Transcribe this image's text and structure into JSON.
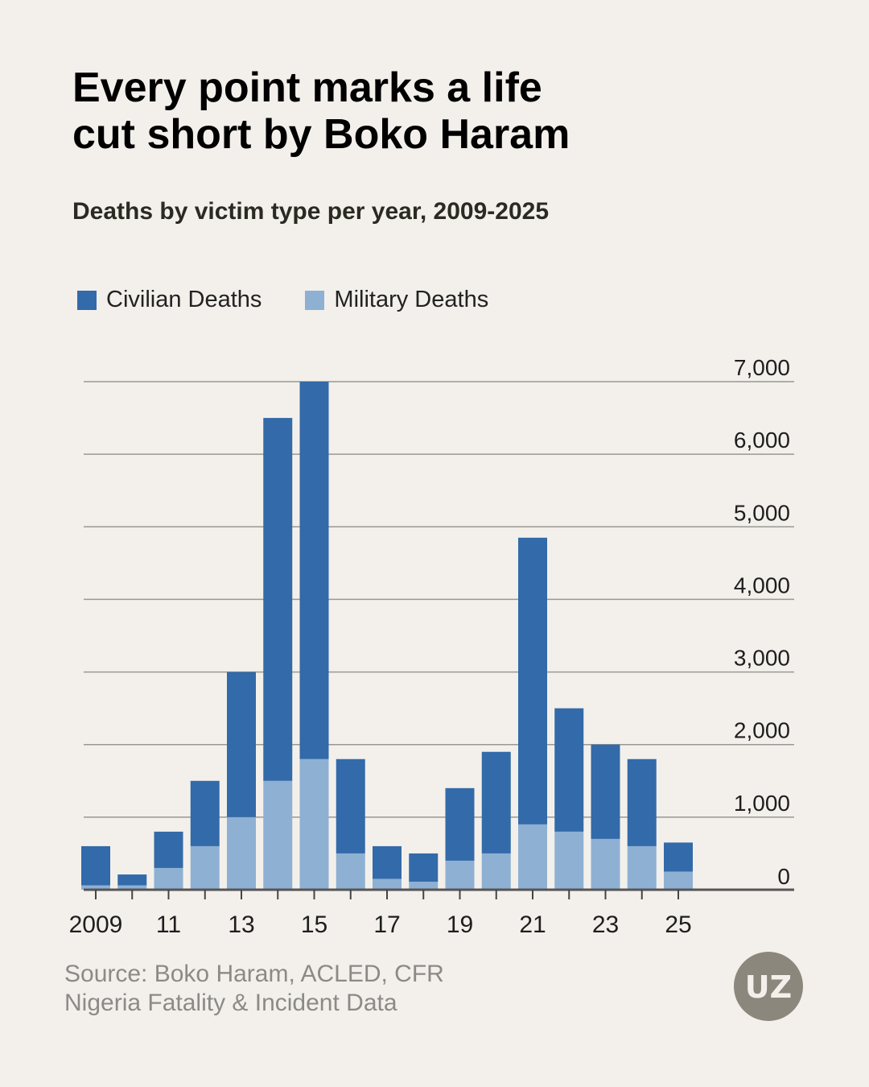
{
  "header": {
    "title": "Every point marks a life\ncut short by Boko Haram",
    "subtitle": "Deaths by victim type per year, 2009-2025"
  },
  "legend": {
    "items": [
      {
        "label": "Civilian Deaths",
        "color": "#336aa9"
      },
      {
        "label": "Military Deaths",
        "color": "#8eb0d3"
      }
    ]
  },
  "chart_data": {
    "type": "bar",
    "stacked": true,
    "x": [
      2009,
      2010,
      2011,
      2012,
      2013,
      2014,
      2015,
      2016,
      2017,
      2018,
      2019,
      2020,
      2021,
      2022,
      2023,
      2024,
      2025
    ],
    "x_tick_labels": [
      "2009",
      "11",
      "13",
      "15",
      "17",
      "19",
      "21",
      "23",
      "25"
    ],
    "x_tick_years": [
      2009,
      2011,
      2013,
      2015,
      2017,
      2019,
      2021,
      2023,
      2025
    ],
    "series": [
      {
        "name": "Military Deaths",
        "color": "#8eb0d3",
        "values": [
          60,
          60,
          300,
          600,
          1000,
          1500,
          1800,
          500,
          150,
          110,
          400,
          500,
          900,
          800,
          700,
          600,
          250
        ]
      },
      {
        "name": "Civilian Deaths",
        "color": "#336aa9",
        "values": [
          540,
          150,
          500,
          900,
          2000,
          5000,
          5200,
          1300,
          450,
          390,
          1000,
          1400,
          3950,
          1700,
          1300,
          1200,
          400
        ]
      }
    ],
    "y_ticks": [
      0,
      1000,
      2000,
      3000,
      4000,
      5000,
      6000,
      7000
    ],
    "y_tick_labels": [
      "0",
      "1,000",
      "2,000",
      "3,000",
      "4,000",
      "5,000",
      "6,000",
      "7,000"
    ],
    "ylim": [
      0,
      7000
    ],
    "y_axis_position": "right",
    "grid": true
  },
  "footer": {
    "source": "Source: Boko Haram, ACLED, CFR\nNigeria Fatality & Incident Data",
    "logo_text": "UZ",
    "logo_color": "#8c877c"
  }
}
